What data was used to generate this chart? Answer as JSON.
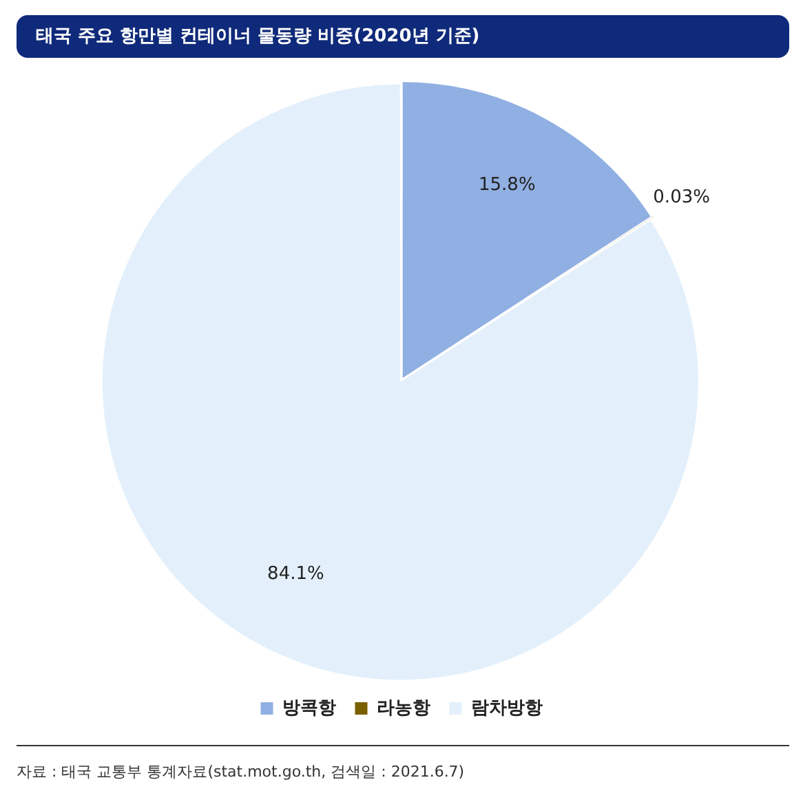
{
  "chart_data": {
    "type": "pie",
    "title": "태국 주요 항만별 컨테이너 물동량 비중(2020년 기준)",
    "categories": [
      "방콕항",
      "라농항",
      "람차방항"
    ],
    "values": [
      15.8,
      0.03,
      84.1
    ],
    "colors": [
      "#90afe2",
      "#7b6000",
      "#e3f0fb"
    ],
    "value_labels": [
      "15.8%",
      "0.03%",
      "84.1%"
    ],
    "legend": "bottom",
    "annotations": [
      "자료 : 태국 교통부 통계자료(stat.mot.go.th, 검색일 : 2021.6.7)"
    ]
  }
}
